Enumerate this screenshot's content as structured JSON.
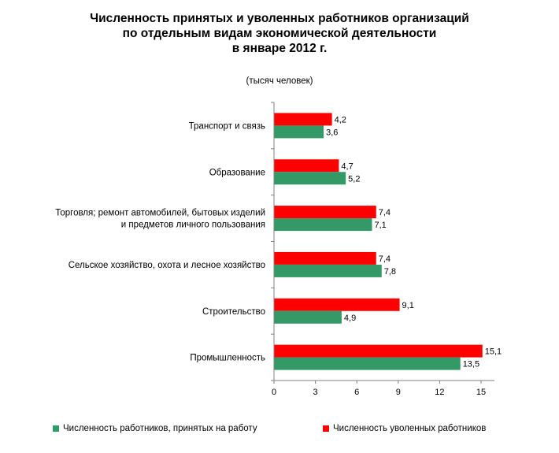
{
  "chart_data": {
    "type": "bar",
    "orientation": "horizontal",
    "title_lines": [
      "Численность принятых и уволенных работников организаций",
      "по отдельным видам экономической деятельности",
      "в январе 2012 г."
    ],
    "subtitle": "(тысяч человек)",
    "categories": [
      [
        "Транспорт и связь"
      ],
      [
        "Образование"
      ],
      [
        "Торговля; ремонт автомобилей, бытовых изделий",
        "и предметов личного пользования"
      ],
      [
        "Сельское хозяйство, охота и лесное хозяйство"
      ],
      [
        "Строительство"
      ],
      [
        "Промышленность"
      ]
    ],
    "series": [
      {
        "name": "Численность уволенных работников",
        "color": "#ff0000",
        "values": [
          4.2,
          4.7,
          7.4,
          7.4,
          9.1,
          15.1
        ],
        "labels": [
          "4,2",
          "4,7",
          "7,4",
          "7,4",
          "9,1",
          "15,1"
        ]
      },
      {
        "name": "Численность работников, принятых на работу",
        "color": "#339966",
        "values": [
          3.6,
          5.2,
          7.1,
          7.8,
          4.9,
          13.5
        ],
        "labels": [
          "3,6",
          "5,2",
          "7,1",
          "7,8",
          "4,9",
          "13,5"
        ]
      }
    ],
    "x_ticks": [
      0,
      3,
      6,
      9,
      12,
      15
    ],
    "xlim": [
      0,
      16
    ],
    "grid": false,
    "legend_position": "bottom",
    "legend_order": [
      1,
      0
    ]
  }
}
